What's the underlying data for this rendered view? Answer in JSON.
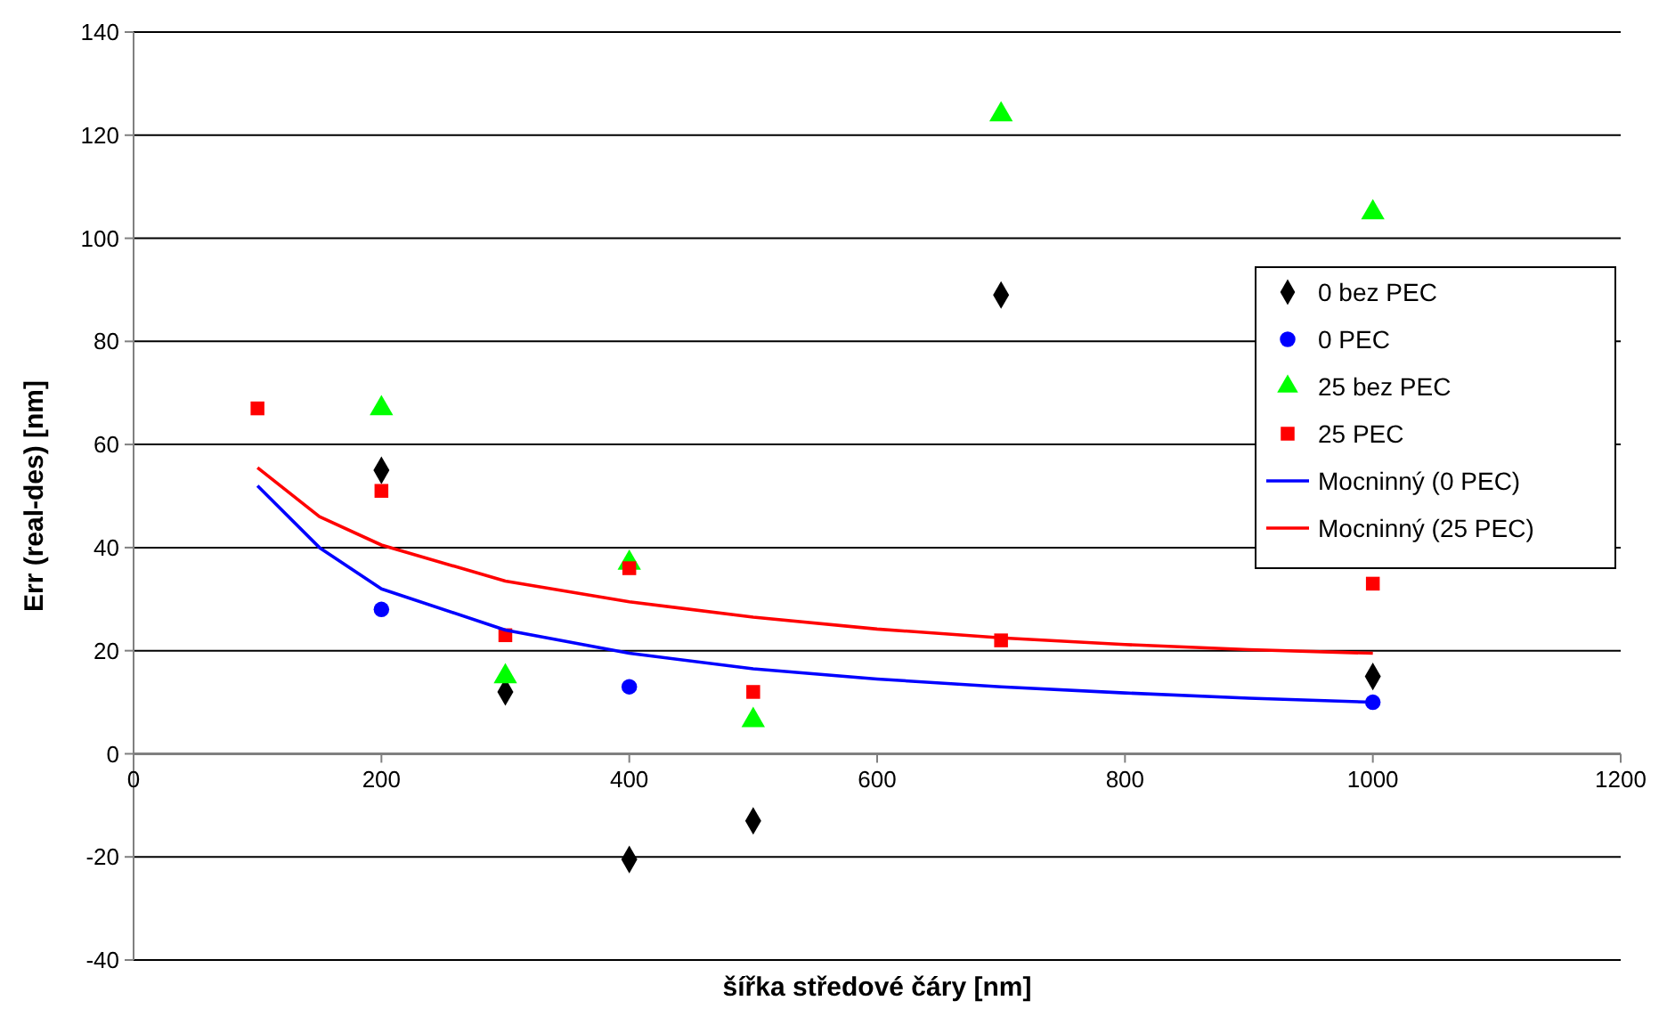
{
  "chart_data": {
    "type": "scatter",
    "xlabel": "šířka středové čáry [nm]",
    "ylabel": "Err (real-des) [nm]",
    "x": [
      100,
      200,
      300,
      400,
      500,
      700,
      1000
    ],
    "series": [
      {
        "name": "0 bez PEC",
        "color": "#000000",
        "marker": "diamond",
        "values": [
          null,
          55,
          12,
          -20.5,
          -13,
          89,
          15
        ]
      },
      {
        "name": "0 PEC",
        "color": "#0000ff",
        "marker": "circle",
        "values": [
          null,
          28,
          null,
          13,
          null,
          null,
          10
        ]
      },
      {
        "name": "25 bez PEC",
        "color": "#00ff00",
        "marker": "triangle",
        "values": [
          null,
          67,
          15,
          37,
          6.5,
          124,
          105
        ]
      },
      {
        "name": "25 PEC",
        "color": "#ff0000",
        "marker": "square",
        "values": [
          67,
          51,
          23,
          36,
          12,
          22,
          33
        ]
      },
      {
        "name": "Mocninný (0 PEC)",
        "type": "line",
        "color": "#0000ff",
        "marker": "none",
        "x": [
          100,
          150,
          200,
          300,
          400,
          500,
          600,
          700,
          800,
          900,
          1000
        ],
        "values": [
          52,
          40,
          32,
          24,
          19.5,
          16.5,
          14.5,
          13,
          11.8,
          10.8,
          10
        ]
      },
      {
        "name": "Mocninný (25 PEC)",
        "type": "line",
        "color": "#ff0000",
        "marker": "none",
        "x": [
          100,
          150,
          200,
          300,
          400,
          500,
          600,
          700,
          800,
          900,
          1000
        ],
        "values": [
          55.5,
          46,
          40.5,
          33.5,
          29.5,
          26.5,
          24.2,
          22.5,
          21.2,
          20.2,
          19.5
        ]
      }
    ],
    "xlim": [
      0,
      1200
    ],
    "xticks": [
      0,
      200,
      400,
      600,
      800,
      1000,
      1200
    ],
    "ylim": [
      -40,
      140
    ],
    "yticks": [
      -40,
      -20,
      0,
      20,
      40,
      60,
      80,
      100,
      120,
      140
    ],
    "grid": "y",
    "legend": "right"
  }
}
